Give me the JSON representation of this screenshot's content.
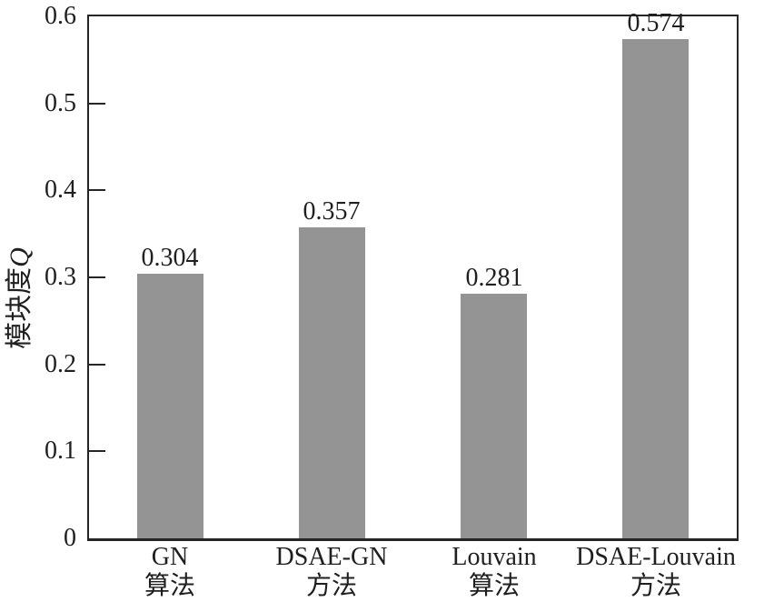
{
  "figure": {
    "background_color": "#ffffff",
    "axis_color": "#262626",
    "text_color": "#1f1f1f"
  },
  "chart_data": {
    "type": "bar",
    "title": "",
    "categories": [
      {
        "line1": "GN",
        "line2": "算法",
        "slug": "gn"
      },
      {
        "line1": "DSAE-GN",
        "line2": "方法",
        "slug": "dsae-gn"
      },
      {
        "line1": "Louvain",
        "line2": "算法",
        "slug": "louvain"
      },
      {
        "line1": "DSAE-Louvain",
        "line2": "方法",
        "slug": "dsae-louvain"
      }
    ],
    "values": [
      0.304,
      0.357,
      0.281,
      0.574
    ],
    "value_labels": [
      "0.304",
      "0.357",
      "0.281",
      "0.574"
    ],
    "bar_color": "#949494",
    "xlabel": "",
    "ylabel_text": "模块度",
    "ylabel_variable": "Q",
    "ylim": [
      0,
      0.6
    ],
    "yticks": [
      0,
      0.1,
      0.2,
      0.3,
      0.4,
      0.5,
      0.6
    ],
    "ytick_labels": [
      "0",
      "0.1",
      "0.2",
      "0.3",
      "0.4",
      "0.5",
      "0.6"
    ],
    "grid": false,
    "legend": null,
    "tick_direction": "in"
  }
}
